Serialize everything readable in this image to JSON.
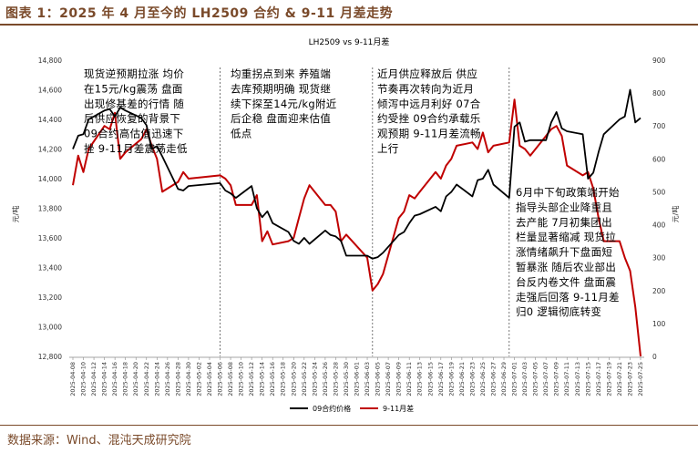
{
  "header": {
    "title": "图表 1：2025 年 4 月至今的 LH2509 合约 & 9-11 月差走势"
  },
  "footer": {
    "source": "数据来源：Wind、混沌天成研究院"
  },
  "chart_data": {
    "type": "line",
    "title": "LH2509 vs 9-11月差",
    "ylabel_left": "元/吨",
    "ylabel_right": "元/吨",
    "ylim_left": [
      12800,
      14800
    ],
    "ylim_right": [
      0,
      900
    ],
    "yticks_left": [
      "12,800",
      "13,000",
      "13,200",
      "13,400",
      "13,600",
      "13,800",
      "14,000",
      "14,200",
      "14,400",
      "14,600",
      "14,800"
    ],
    "yticks_right": [
      "0",
      "100",
      "200",
      "300",
      "400",
      "500",
      "600",
      "700",
      "800",
      "900"
    ],
    "x": [
      "2025-04-08",
      "2025-04-09",
      "2025-04-10",
      "2025-04-11",
      "2025-04-14",
      "2025-04-15",
      "2025-04-16",
      "2025-04-17",
      "2025-04-18",
      "2025-04-21",
      "2025-04-22",
      "2025-04-23",
      "2025-04-24",
      "2025-04-25",
      "2025-04-28",
      "2025-04-29",
      "2025-04-30",
      "2025-05-06",
      "2025-05-07",
      "2025-05-08",
      "2025-05-09",
      "2025-05-12",
      "2025-05-13",
      "2025-05-14",
      "2025-05-15",
      "2025-05-16",
      "2025-05-19",
      "2025-05-20",
      "2025-05-21",
      "2025-05-22",
      "2025-05-23",
      "2025-05-26",
      "2025-05-27",
      "2025-05-28",
      "2025-05-29",
      "2025-05-30",
      "2025-06-03",
      "2025-06-04",
      "2025-06-05",
      "2025-06-06",
      "2025-06-09",
      "2025-06-10",
      "2025-06-11",
      "2025-06-12",
      "2025-06-13",
      "2025-06-16",
      "2025-06-17",
      "2025-06-18",
      "2025-06-19",
      "2025-06-20",
      "2025-06-23",
      "2025-06-24",
      "2025-06-25",
      "2025-06-26",
      "2025-06-27",
      "2025-06-30",
      "2025-07-01",
      "2025-07-02",
      "2025-07-03",
      "2025-07-04",
      "2025-07-07",
      "2025-07-08",
      "2025-07-09",
      "2025-07-10",
      "2025-07-11",
      "2025-07-14",
      "2025-07-15",
      "2025-07-16",
      "2025-07-17",
      "2025-07-18",
      "2025-07-21",
      "2025-07-22",
      "2025-07-23",
      "2025-07-24",
      "2025-07-25"
    ],
    "xtick_labels": [
      "2025-04-08",
      "2025-04-10",
      "2025-04-12",
      "2025-04-14",
      "2025-04-16",
      "2025-04-18",
      "2025-04-20",
      "2025-04-22",
      "2025-04-24",
      "2025-04-26",
      "2025-04-28",
      "2025-04-30",
      "2025-05-02",
      "2025-05-04",
      "2025-05-06",
      "2025-05-08",
      "2025-05-10",
      "2025-05-12",
      "2025-05-14",
      "2025-05-16",
      "2025-05-18",
      "2025-05-20",
      "2025-05-22",
      "2025-05-24",
      "2025-05-26",
      "2025-05-28",
      "2025-05-30",
      "2025-06-01",
      "2025-06-03",
      "2025-06-05",
      "2025-06-07",
      "2025-06-09",
      "2025-06-11",
      "2025-06-13",
      "2025-06-15",
      "2025-06-17",
      "2025-06-19",
      "2025-06-21",
      "2025-06-23",
      "2025-06-25",
      "2025-06-27",
      "2025-06-29",
      "2025-07-01",
      "2025-07-03",
      "2025-07-05",
      "2025-07-07",
      "2025-07-09",
      "2025-07-11",
      "2025-07-13",
      "2025-07-15",
      "2025-07-17",
      "2025-07-19",
      "2025-07-21",
      "2025-07-23",
      "2025-07-25"
    ],
    "series": [
      {
        "name": "09合约价格",
        "axis": "left",
        "color": "#000000",
        "values": [
          14200,
          14290,
          14300,
          14400,
          14460,
          14470,
          14420,
          14480,
          14460,
          14410,
          14360,
          14200,
          14220,
          14150,
          13930,
          13920,
          13950,
          13970,
          13920,
          13900,
          13870,
          13950,
          13800,
          13740,
          13780,
          13700,
          13640,
          13580,
          13560,
          13600,
          13560,
          13650,
          13620,
          13610,
          13580,
          13480,
          13480,
          13460,
          13470,
          13500,
          13620,
          13640,
          13700,
          13750,
          13760,
          13810,
          13780,
          13880,
          13910,
          13960,
          13880,
          13990,
          14000,
          14060,
          13960,
          13870,
          14350,
          14380,
          14250,
          14260,
          14260,
          14380,
          14450,
          14340,
          14320,
          14300,
          14000,
          14040,
          14180,
          14300,
          14400,
          14420,
          14600,
          14380,
          14410
        ],
        "note": "元/吨"
      },
      {
        "name": "9-11月差",
        "axis": "right",
        "color": "#c00000",
        "values": [
          520,
          610,
          560,
          630,
          700,
          690,
          740,
          600,
          620,
          660,
          690,
          640,
          600,
          500,
          530,
          560,
          540,
          550,
          540,
          520,
          460,
          460,
          490,
          350,
          380,
          340,
          350,
          360,
          420,
          480,
          520,
          460,
          460,
          440,
          350,
          370,
          300,
          200,
          220,
          250,
          420,
          440,
          490,
          480,
          500,
          560,
          540,
          580,
          600,
          640,
          650,
          630,
          680,
          620,
          640,
          650,
          780,
          640,
          630,
          610,
          670,
          690,
          700,
          670,
          580,
          550,
          560,
          510,
          420,
          350,
          350,
          300,
          260,
          150,
          0
        ]
      }
    ],
    "legend": "bottom",
    "grid": false,
    "vertical_dividers": [
      "2025-05-06",
      "2025-06-04",
      "2025-06-30"
    ],
    "annotations": [
      {
        "id": "a1",
        "lines": [
          "现货逆预期拉涨 均价",
          "在15元/kg震荡 盘面",
          "出现修基差的行情 随",
          "后供应恢复的背景下",
          "09合约高估值迅速下",
          "挫 9-11月差震荡走低"
        ]
      },
      {
        "id": "a2",
        "lines": [
          "均重拐点到来 养殖端",
          "去库预期明确 现货继",
          "续下探至14元/kg附近",
          "后企稳 盘面迎来估值",
          "低点"
        ]
      },
      {
        "id": "a3",
        "lines": [
          "近月供应释放后 供应",
          "节奏再次转向为近月",
          "倾泻中远月利好 07合",
          "约受挫 09合约承载乐",
          "观预期 9-11月差流畅",
          "上行"
        ]
      },
      {
        "id": "a4",
        "lines": [
          "6月中下旬政策端开始",
          "指导头部企业降重且",
          "去产能 7月初集团出",
          "栏量显著缩减 现货拉",
          "涨情绪飙升下盘面短",
          "暂暴涨 随后农业部出",
          "台反内卷文件 盘面震",
          "走强后回落 9-11月差",
          "归0 逻辑彻底转变"
        ]
      }
    ]
  }
}
